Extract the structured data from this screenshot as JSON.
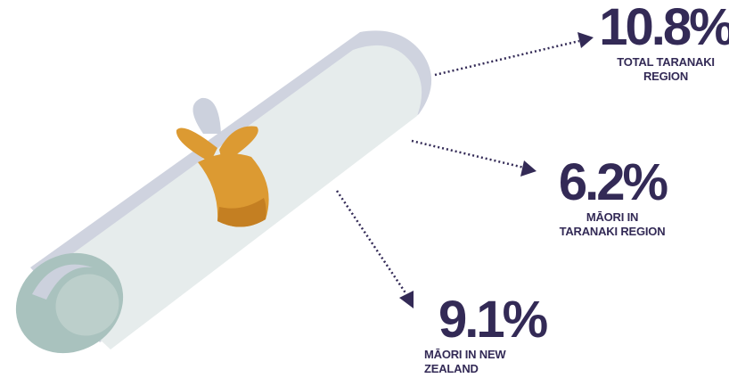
{
  "colors": {
    "text": "#332a56",
    "arrow": "#332a56",
    "paper": "#e6ecec",
    "paper_shadow": "#cfd3df",
    "paper_edge": "#ccd1dd",
    "roll_end": "#a9c2be",
    "roll_end_light": "#bccfcb",
    "ribbon": "#dc9a32",
    "ribbon_dark": "#c47f22"
  },
  "stats": [
    {
      "value": "10.8%",
      "label_lines": [
        "TOTAL TARANAKI",
        "REGION"
      ]
    },
    {
      "value": "6.2%",
      "label_lines": [
        "MĀORI IN",
        "TARANAKI REGION"
      ]
    },
    {
      "value": "9.1%",
      "label_lines": [
        "MĀORI IN NEW",
        "ZEALAND"
      ]
    }
  ]
}
